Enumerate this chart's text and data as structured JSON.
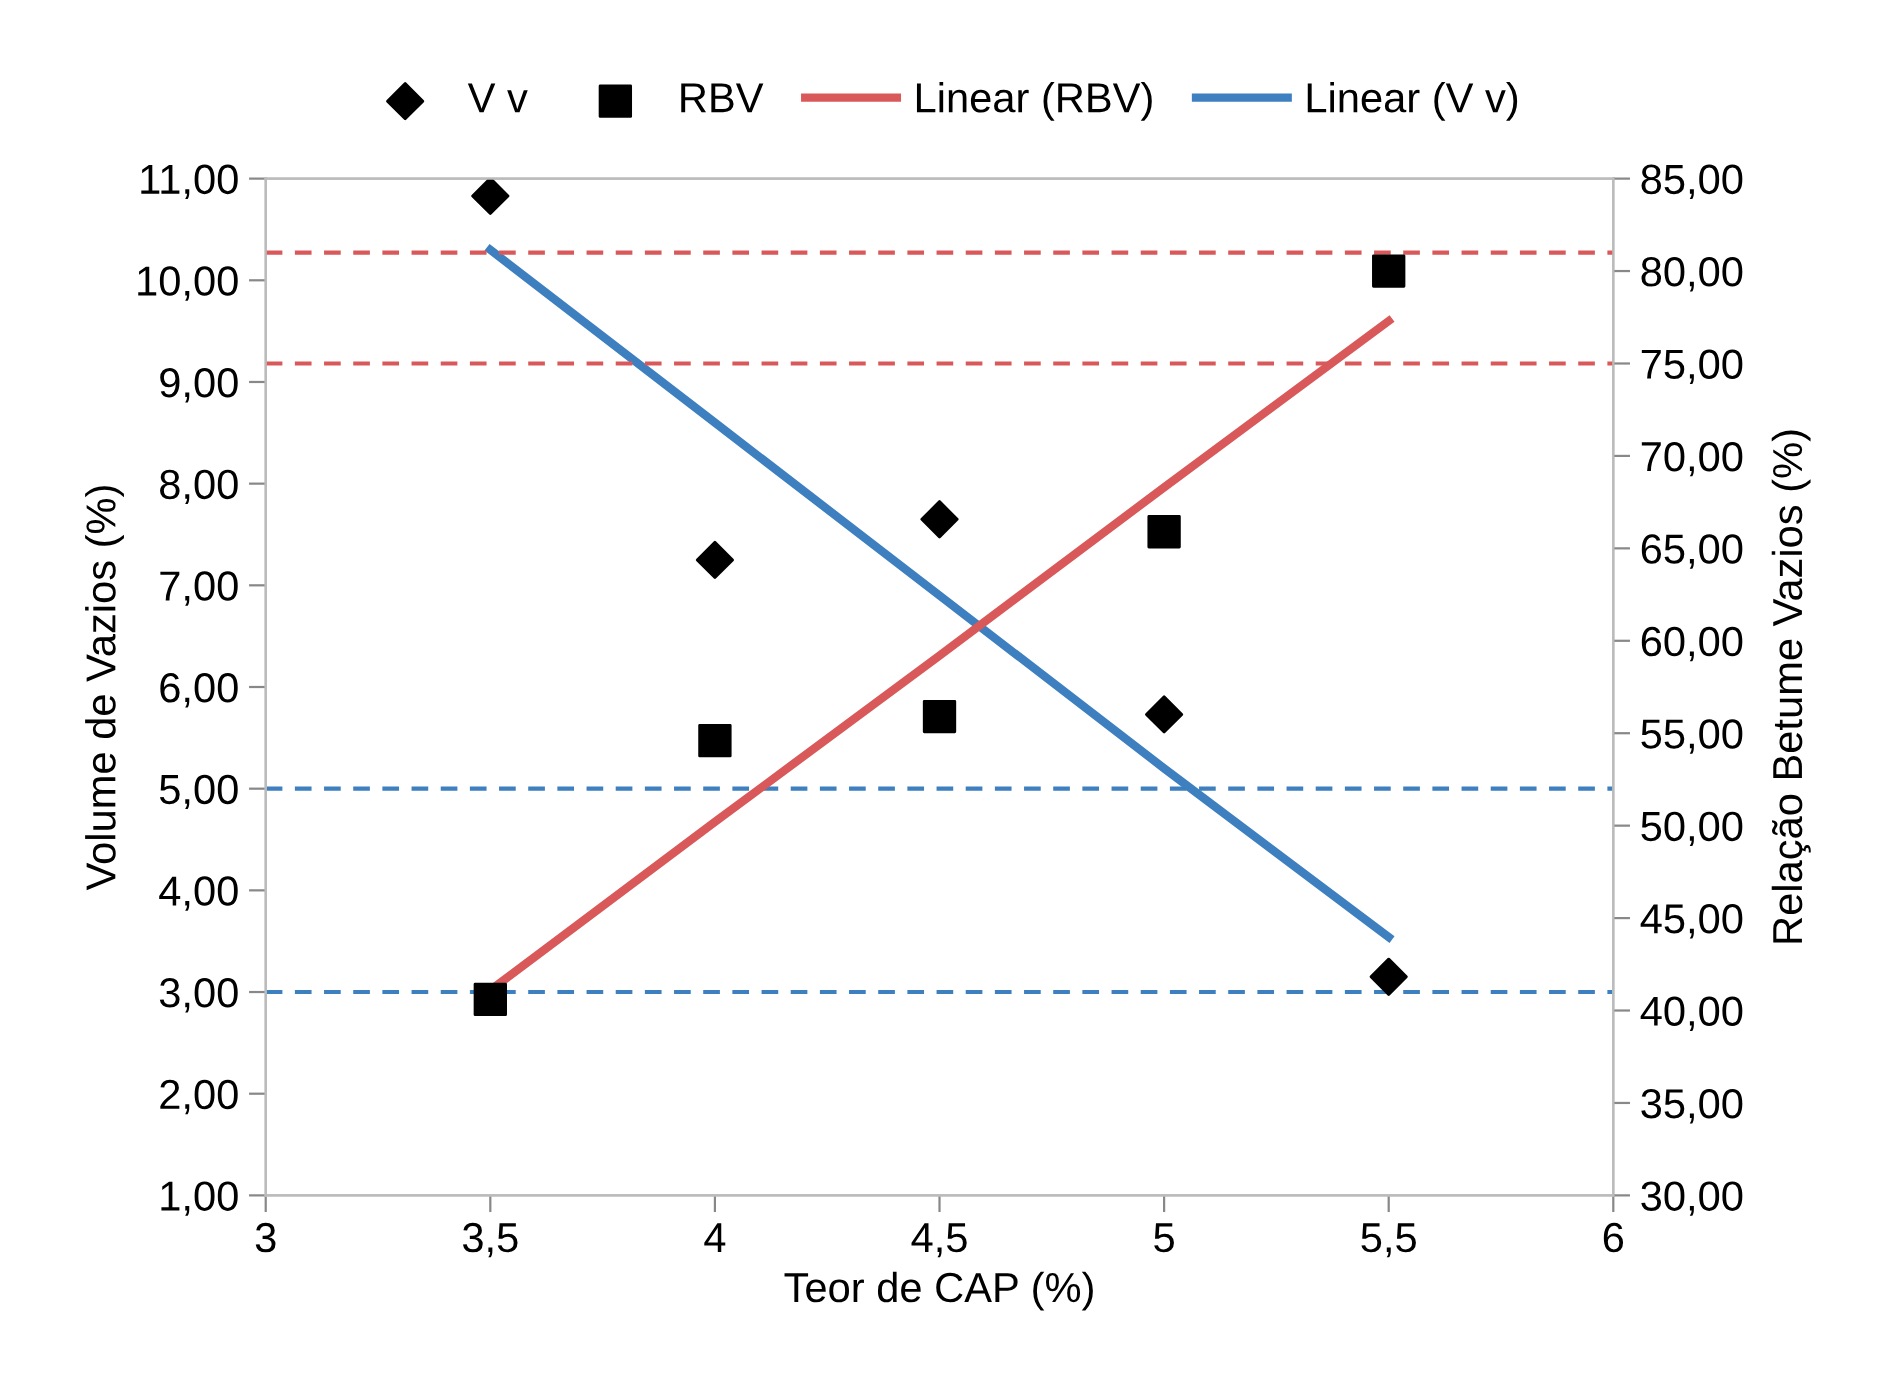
{
  "chart_data": {
    "type": "scatter",
    "xlabel": "Teor de CAP (%)",
    "ylabel": "Volume de Vazios (%)",
    "y2label": "Relação Betume Vazios (%)",
    "x": [
      3.5,
      4,
      4.5,
      5,
      5.5
    ],
    "series": [
      {
        "name": "V v",
        "marker": "diamond",
        "color": "#000000",
        "values": [
          10.83,
          7.25,
          7.65,
          5.73,
          3.15
        ]
      },
      {
        "name": "RBV",
        "marker": "square",
        "color": "#000000",
        "axis": "y2",
        "values": [
          40.6,
          54.6,
          55.9,
          65.9,
          80.0
        ]
      },
      {
        "name": "Linear (RBV)",
        "type": "line",
        "marker": "none",
        "color": "#d9595a",
        "axis": "y2",
        "values": [
          41.1,
          50.2,
          59.2,
          68.3,
          77.3
        ]
      },
      {
        "name": "Linear (V v)",
        "type": "line",
        "marker": "none",
        "color": "#3d7fbf",
        "values": [
          10.3,
          8.6,
          6.9,
          5.2,
          3.54
        ]
      }
    ],
    "xlim": [
      3,
      6
    ],
    "xticks": [
      3,
      {
        "value": 3.5,
        "label": "3,5"
      },
      4,
      {
        "value": 4.5,
        "label": "4,5"
      },
      5,
      {
        "value": 5.5,
        "label": "5,5"
      },
      6
    ],
    "ylim": [
      1,
      11
    ],
    "yticks": [
      {
        "value": 1,
        "label": "1,00"
      },
      {
        "value": 2,
        "label": "2,00"
      },
      {
        "value": 3,
        "label": "3,00"
      },
      {
        "value": 4,
        "label": "4,00"
      },
      {
        "value": 5,
        "label": "5,00"
      },
      {
        "value": 6,
        "label": "6,00"
      },
      {
        "value": 7,
        "label": "7,00"
      },
      {
        "value": 8,
        "label": "8,00"
      },
      {
        "value": 9,
        "label": "9,00"
      },
      {
        "value": 10,
        "label": "10,00"
      },
      {
        "value": 11,
        "label": "11,00"
      }
    ],
    "y2lim": [
      30,
      85
    ],
    "y2ticks": [
      {
        "value": 30,
        "label": "30,00"
      },
      {
        "value": 35,
        "label": "35,00"
      },
      {
        "value": 40,
        "label": "40,00"
      },
      {
        "value": 45,
        "label": "45,00"
      },
      {
        "value": 50,
        "label": "50,00"
      },
      {
        "value": 55,
        "label": "55,00"
      },
      {
        "value": 60,
        "label": "60,00"
      },
      {
        "value": 65,
        "label": "65,00"
      },
      {
        "value": 70,
        "label": "70,00"
      },
      {
        "value": 75,
        "label": "75,00"
      },
      {
        "value": 80,
        "label": "80,00"
      },
      {
        "value": 85,
        "label": "85,00"
      }
    ],
    "ref_lines": [
      {
        "axis": "y2",
        "value": 81,
        "color": "#d9595a",
        "line_style": "dashed"
      },
      {
        "axis": "y2",
        "value": 75,
        "color": "#d9595a",
        "line_style": "dashed"
      },
      {
        "axis": "y",
        "value": 5,
        "color": "#3d7fbf",
        "line_style": "dashed"
      },
      {
        "axis": "y",
        "value": 3,
        "color": "#3d7fbf",
        "line_style": "dashed"
      }
    ],
    "grid": false,
    "legend": "top"
  }
}
